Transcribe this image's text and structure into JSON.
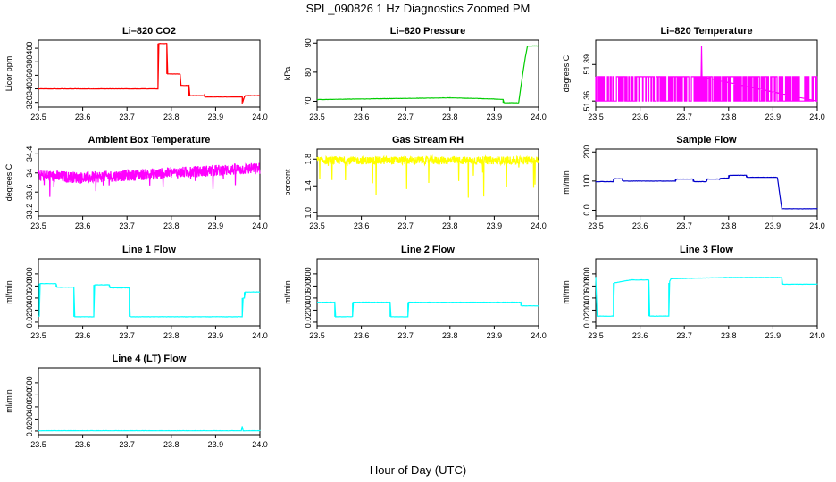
{
  "figure": {
    "title": "SPL_090826  1 Hz Diagnostics Zoomed PM",
    "xlabel": "Hour of Day (UTC)"
  },
  "chart_data": [
    {
      "type": "line",
      "title": "Li–820 CO2",
      "xlabel": "",
      "ylabel": "Licor ppm",
      "xlim": [
        23.5,
        24.0
      ],
      "ylim": [
        313,
        412
      ],
      "yticks": [
        320,
        340,
        360,
        380,
        400
      ],
      "xticks": [
        23.5,
        23.6,
        23.7,
        23.8,
        23.9,
        24.0
      ],
      "color": "#ff0000",
      "grid": false,
      "series": [
        {
          "x": [
            23.5,
            23.77,
            23.77,
            23.775,
            23.79,
            23.79,
            23.82,
            23.82,
            23.84,
            23.84,
            23.875,
            23.875,
            23.96,
            23.96,
            23.965,
            23.965,
            24.0
          ],
          "y": [
            340,
            340,
            407,
            407,
            407,
            362,
            362,
            345,
            345,
            330,
            330,
            328,
            328,
            318,
            328,
            330,
            330
          ]
        }
      ]
    },
    {
      "type": "line",
      "title": "Li–820 Pressure",
      "xlabel": "",
      "ylabel": "kPa",
      "xlim": [
        23.5,
        24.0
      ],
      "ylim": [
        68,
        91
      ],
      "yticks": [
        70,
        80,
        90
      ],
      "xticks": [
        23.5,
        23.6,
        23.7,
        23.8,
        23.9,
        24.0
      ],
      "color": "#00cc00",
      "grid": false,
      "series": [
        {
          "x": [
            23.5,
            23.7,
            23.8,
            23.85,
            23.9,
            23.92,
            23.92,
            23.955,
            23.96,
            23.97,
            23.975,
            24.0
          ],
          "y": [
            70.6,
            71.0,
            71.2,
            71.0,
            70.8,
            70.6,
            69.5,
            69.5,
            75,
            85,
            89,
            89
          ]
        }
      ]
    },
    {
      "type": "line",
      "title": "Li–820 Temperature",
      "xlabel": "",
      "ylabel": "degrees C",
      "xlim": [
        23.5,
        24.0
      ],
      "ylim": [
        51.355,
        51.41
      ],
      "yticks": [
        51.36,
        51.39
      ],
      "xticks": [
        23.5,
        23.6,
        23.7,
        23.8,
        23.9,
        24.0
      ],
      "color": "#ff00ff",
      "grid": false,
      "series": [
        {
          "x": [
            23.5,
            24.0
          ],
          "y": [
            51.38,
            51.38
          ]
        }
      ]
    },
    {
      "type": "line",
      "title": "Ambient Box Temperature",
      "xlabel": "",
      "ylabel": "degrees C",
      "xlim": [
        23.5,
        24.0
      ],
      "ylim": [
        33.1,
        34.5
      ],
      "yticks": [
        33.2,
        33.6,
        34.0,
        34.4
      ],
      "xticks": [
        23.5,
        23.6,
        23.7,
        23.8,
        23.9,
        24.0
      ],
      "color": "#ff00ff",
      "grid": false,
      "series": [
        {
          "x": [
            23.5,
            23.6,
            23.7,
            23.8,
            23.9,
            24.0
          ],
          "y": [
            33.95,
            33.9,
            33.95,
            34.0,
            34.05,
            34.1
          ]
        }
      ]
    },
    {
      "type": "line",
      "title": "Gas Stream RH",
      "xlabel": "",
      "ylabel": "percent",
      "xlim": [
        23.5,
        24.0
      ],
      "ylim": [
        0.95,
        1.95
      ],
      "yticks": [
        1.0,
        1.4,
        1.8
      ],
      "xticks": [
        23.5,
        23.6,
        23.7,
        23.8,
        23.9,
        24.0
      ],
      "color": "#ffff00",
      "grid": false,
      "series": [
        {
          "x": [
            23.5,
            24.0
          ],
          "y": [
            1.78,
            1.78
          ]
        }
      ]
    },
    {
      "type": "line",
      "title": "Sample Flow",
      "xlabel": "",
      "ylabel": "ml/min",
      "xlim": [
        23.5,
        24.0
      ],
      "ylim": [
        -20,
        210
      ],
      "yticks": [
        0,
        100,
        200
      ],
      "xticks": [
        23.5,
        23.6,
        23.7,
        23.8,
        23.9,
        24.0
      ],
      "color": "#0000cc",
      "grid": false,
      "series": [
        {
          "x": [
            23.5,
            23.54,
            23.54,
            23.56,
            23.56,
            23.6,
            23.68,
            23.68,
            23.72,
            23.72,
            23.75,
            23.75,
            23.78,
            23.78,
            23.8,
            23.8,
            23.84,
            23.84,
            23.91,
            23.91,
            23.92,
            24.0
          ],
          "y": [
            98,
            98,
            108,
            108,
            100,
            100,
            100,
            107,
            107,
            98,
            98,
            107,
            107,
            110,
            110,
            120,
            120,
            113,
            113,
            113,
            5,
            5
          ]
        }
      ]
    },
    {
      "type": "line",
      "title": "Line 1 Flow",
      "xlabel": "",
      "ylabel": "ml/min",
      "xlim": [
        23.5,
        24.0
      ],
      "ylim": [
        -60,
        1050
      ],
      "yticks": [
        0,
        200,
        400,
        600,
        800
      ],
      "xticks": [
        23.5,
        23.6,
        23.7,
        23.8,
        23.9,
        24.0
      ],
      "color": "#00ffff",
      "grid": false,
      "series": [
        {
          "x": [
            23.5,
            23.502,
            23.502,
            23.54,
            23.54,
            23.58,
            23.58,
            23.625,
            23.625,
            23.66,
            23.66,
            23.705,
            23.705,
            23.96,
            23.96,
            23.965,
            23.965,
            24.0
          ],
          "y": [
            100,
            100,
            640,
            640,
            580,
            580,
            90,
            90,
            620,
            620,
            570,
            570,
            90,
            90,
            400,
            400,
            500,
            500
          ]
        }
      ]
    },
    {
      "type": "line",
      "title": "Line 2 Flow",
      "xlabel": "",
      "ylabel": "ml/min",
      "xlim": [
        23.5,
        24.0
      ],
      "ylim": [
        -60,
        1050
      ],
      "yticks": [
        0,
        200,
        400,
        600,
        800
      ],
      "xticks": [
        23.5,
        23.6,
        23.7,
        23.8,
        23.9,
        24.0
      ],
      "color": "#00ffff",
      "grid": false,
      "series": [
        {
          "x": [
            23.5,
            23.54,
            23.54,
            23.58,
            23.58,
            23.665,
            23.665,
            23.705,
            23.705,
            23.96,
            23.96,
            24.0
          ],
          "y": [
            330,
            330,
            90,
            90,
            330,
            330,
            90,
            90,
            330,
            330,
            270,
            270
          ]
        }
      ]
    },
    {
      "type": "line",
      "title": "Line 3 Flow",
      "xlabel": "",
      "ylabel": "ml/min",
      "xlim": [
        23.5,
        24.0
      ],
      "ylim": [
        -60,
        1050
      ],
      "yticks": [
        0,
        200,
        400,
        600,
        800
      ],
      "xticks": [
        23.5,
        23.6,
        23.7,
        23.8,
        23.9,
        24.0
      ],
      "color": "#00ffff",
      "grid": false,
      "series": [
        {
          "x": [
            23.5,
            23.503,
            23.503,
            23.54,
            23.54,
            23.58,
            23.62,
            23.62,
            23.665,
            23.665,
            23.67,
            23.8,
            23.92,
            23.92,
            24.0
          ],
          "y": [
            750,
            100,
            100,
            100,
            650,
            700,
            700,
            100,
            100,
            650,
            720,
            740,
            740,
            630,
            630
          ]
        }
      ]
    },
    {
      "type": "line",
      "title": "Line 4 (LT) Flow",
      "xlabel": "",
      "ylabel": "ml/min",
      "xlim": [
        23.5,
        24.0
      ],
      "ylim": [
        -60,
        1050
      ],
      "yticks": [
        0,
        200,
        400,
        600,
        800
      ],
      "xticks": [
        23.5,
        23.6,
        23.7,
        23.8,
        23.9,
        24.0
      ],
      "color": "#00ffff",
      "grid": false,
      "series": [
        {
          "x": [
            23.5,
            23.958,
            23.96,
            23.962,
            24.0
          ],
          "y": [
            5,
            5,
            80,
            5,
            5
          ]
        }
      ]
    }
  ]
}
